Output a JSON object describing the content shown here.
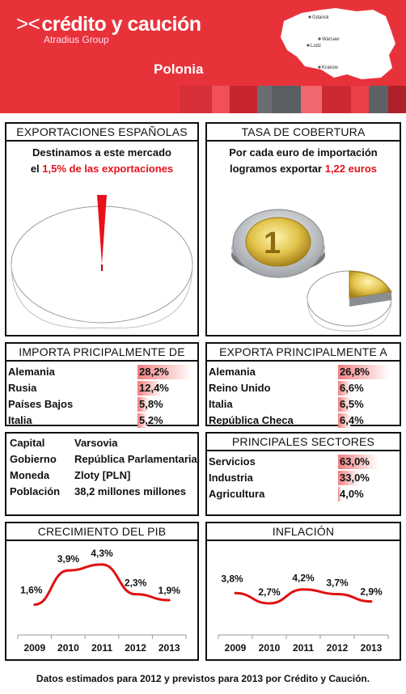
{
  "brand": {
    "name": "crédito y caución",
    "sub": "Atradius Group"
  },
  "country": "Polonia",
  "map": {
    "cities": [
      "Gdansk",
      "Warsaw",
      "Lodz",
      "Krakow"
    ]
  },
  "exports": {
    "title": "EXPORTACIONES ESPAÑOLAS",
    "line1": "Destinamos a este mercado",
    "line2_prefix": "el ",
    "line2_highlight": "1,5% de las exportaciones",
    "share_percent": 1.5
  },
  "coverage": {
    "title": "TASA DE COBERTURA",
    "line1": "Por cada euro de importación",
    "line2_prefix": "logramos exportar ",
    "line2_highlight": "1,22 euros",
    "ratio": 1.22
  },
  "imports_from": {
    "title": "IMPORTA PRICIPALMENTE DE",
    "rows": [
      {
        "name": "Alemania",
        "value": "28,2%",
        "pct": 28.2
      },
      {
        "name": "Rusia",
        "value": "12,4%",
        "pct": 12.4
      },
      {
        "name": "Países Bajos",
        "value": "5,8%",
        "pct": 5.8
      },
      {
        "name": "Italia",
        "value": "5,2%",
        "pct": 5.2
      }
    ]
  },
  "exports_to": {
    "title": "EXPORTA PRINCIPALMENTE A",
    "rows": [
      {
        "name": "Alemania",
        "value": "26,8%",
        "pct": 26.8
      },
      {
        "name": "Reino Unido",
        "value": "6,6%",
        "pct": 6.6
      },
      {
        "name": "Italia",
        "value": "6,5%",
        "pct": 6.5
      },
      {
        "name": "República Checa",
        "value": "6,4%",
        "pct": 6.4
      }
    ]
  },
  "country_info": {
    "rows": [
      {
        "key": "Capital",
        "value": "Varsovia"
      },
      {
        "key": "Gobierno",
        "value": "República Parlamentaria"
      },
      {
        "key": "Moneda",
        "value": "Zloty [PLN]"
      },
      {
        "key": "Población",
        "value": "38,2 millones millones"
      }
    ]
  },
  "sectors": {
    "title": "PRINCIPALES SECTORES",
    "rows": [
      {
        "name": "Servicios",
        "value": "63,0%",
        "pct": 63.0
      },
      {
        "name": "Industria",
        "value": "33,0%",
        "pct": 33.0
      },
      {
        "name": "Agricultura",
        "value": "4,0%",
        "pct": 4.0
      }
    ]
  },
  "chart_data": [
    {
      "type": "line",
      "title": "CRECIMIENTO DEL PIB",
      "categories": [
        "2009",
        "2010",
        "2011",
        "2012",
        "2013"
      ],
      "values": [
        1.6,
        3.9,
        4.3,
        2.3,
        1.9
      ],
      "labels": [
        "1,6%",
        "3,9%",
        "4,3%",
        "2,3%",
        "1,9%"
      ],
      "ylim": [
        0,
        5
      ],
      "grid": false,
      "color": "#e01010"
    },
    {
      "type": "line",
      "title": "INFLACIÓN",
      "categories": [
        "2009",
        "2010",
        "2011",
        "2012",
        "2013"
      ],
      "values": [
        3.8,
        2.7,
        4.2,
        3.7,
        2.9
      ],
      "labels": [
        "3,8%",
        "2,7%",
        "4,2%",
        "3,7%",
        "2,9%"
      ],
      "ylim": [
        0,
        8
      ],
      "grid": false,
      "color": "#e01010"
    }
  ],
  "footnote": "Datos estimados para 2012 y previstos para 2013 por Crédito y Caución.",
  "colors": {
    "brand_red": "#e8323a",
    "highlight_red": "#e8101a",
    "bar_red": "#f08080"
  }
}
